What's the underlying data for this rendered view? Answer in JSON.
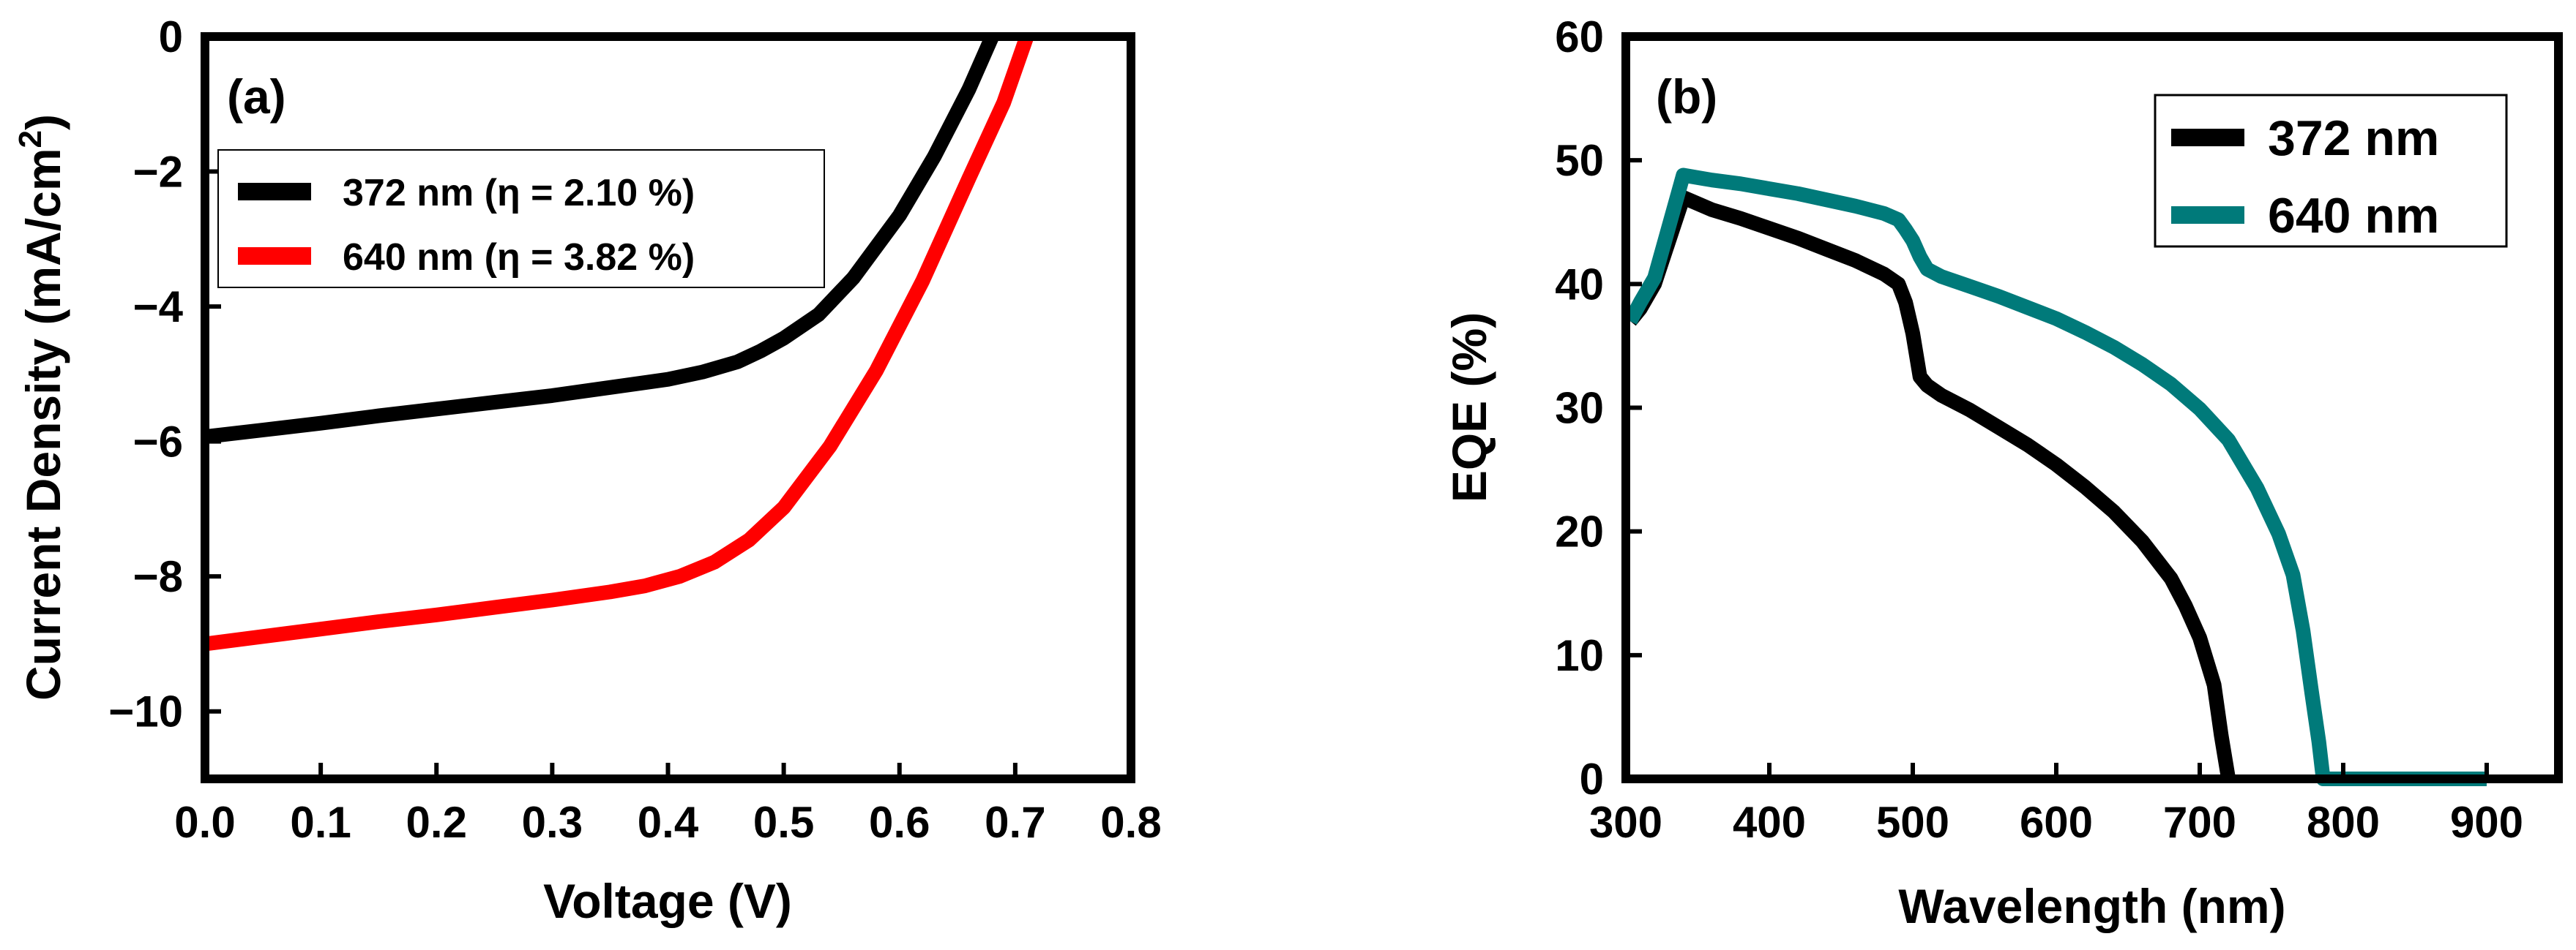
{
  "chart_data": [
    {
      "type": "line",
      "panel_label": "(a)",
      "xlabel": "Voltage (V)",
      "ylabel": "Current Density (mA/cm",
      "ylabel_sup": "2",
      "ylabel_close": ")",
      "xlim": [
        0,
        0.8
      ],
      "ylim": [
        -11,
        0
      ],
      "xticks": [
        0.0,
        0.1,
        0.2,
        0.3,
        0.4,
        0.5,
        0.6,
        0.7,
        0.8
      ],
      "xtick_labels": [
        "0.0",
        "0.1",
        "0.2",
        "0.3",
        "0.4",
        "0.5",
        "0.6",
        "0.7",
        "0.8"
      ],
      "yticks": [
        0,
        -2,
        -4,
        -6,
        -8,
        -10
      ],
      "ytick_labels": [
        "0",
        "−2",
        "−4",
        "−6",
        "−8",
        "−10"
      ],
      "legend_position": "top-left",
      "series": [
        {
          "name": "372 nm (η = 2.10 %)",
          "color": "#000000",
          "x": [
            0.0,
            0.05,
            0.1,
            0.15,
            0.2,
            0.25,
            0.3,
            0.35,
            0.4,
            0.43,
            0.46,
            0.48,
            0.5,
            0.53,
            0.56,
            0.6,
            0.63,
            0.66,
            0.68
          ],
          "y": [
            -5.93,
            -5.83,
            -5.73,
            -5.62,
            -5.52,
            -5.42,
            -5.32,
            -5.2,
            -5.08,
            -4.97,
            -4.82,
            -4.66,
            -4.47,
            -4.12,
            -3.58,
            -2.65,
            -1.78,
            -0.78,
            0.0
          ]
        },
        {
          "name": "640 nm (η = 3.82 %)",
          "color": "#ff0000",
          "x": [
            0.0,
            0.05,
            0.1,
            0.15,
            0.2,
            0.25,
            0.3,
            0.35,
            0.38,
            0.41,
            0.44,
            0.47,
            0.5,
            0.54,
            0.58,
            0.62,
            0.66,
            0.69,
            0.71
          ],
          "y": [
            -9.0,
            -8.89,
            -8.78,
            -8.67,
            -8.57,
            -8.46,
            -8.35,
            -8.23,
            -8.14,
            -8.0,
            -7.79,
            -7.46,
            -6.98,
            -6.07,
            -4.95,
            -3.62,
            -2.1,
            -0.98,
            0.0
          ]
        }
      ]
    },
    {
      "type": "line",
      "panel_label": "(b)",
      "xlabel": "Wavelength (nm)",
      "ylabel": "EQE (%)",
      "xlim": [
        300,
        950
      ],
      "ylim": [
        0,
        60
      ],
      "xticks": [
        300,
        400,
        500,
        600,
        700,
        800,
        900
      ],
      "xtick_labels": [
        "300",
        "400",
        "500",
        "600",
        "700",
        "800",
        "900"
      ],
      "yticks": [
        0,
        10,
        20,
        30,
        40,
        50,
        60
      ],
      "ytick_labels": [
        "0",
        "10",
        "20",
        "30",
        "40",
        "50",
        "60"
      ],
      "legend_position": "top-right",
      "series": [
        {
          "name": "372 nm",
          "color": "#000000",
          "x": [
            303,
            310,
            320,
            340,
            360,
            380,
            400,
            420,
            440,
            460,
            480,
            490,
            495,
            500,
            505,
            510,
            520,
            540,
            560,
            580,
            600,
            620,
            640,
            660,
            680,
            690,
            700,
            710,
            715,
            720
          ],
          "y": [
            37,
            38,
            40,
            47,
            46,
            45.3,
            44.5,
            43.7,
            42.8,
            41.9,
            40.8,
            40,
            38.5,
            36,
            32.5,
            31.8,
            31,
            29.8,
            28.4,
            27,
            25.4,
            23.6,
            21.6,
            19.2,
            16.2,
            14,
            11.4,
            7.6,
            3.5,
            0
          ]
        },
        {
          "name": "640 nm",
          "color": "#007a7a",
          "x": [
            303,
            310,
            320,
            340,
            360,
            380,
            400,
            420,
            440,
            460,
            480,
            490,
            495,
            500,
            505,
            510,
            520,
            540,
            560,
            580,
            600,
            620,
            640,
            660,
            680,
            700,
            720,
            740,
            755,
            765,
            772,
            778,
            783,
            786,
            800,
            850,
            900
          ],
          "y": [
            37,
            38.5,
            40.5,
            48.8,
            48.4,
            48.1,
            47.7,
            47.3,
            46.8,
            46.3,
            45.7,
            45.2,
            44.4,
            43.5,
            42.2,
            41.2,
            40.6,
            39.8,
            39,
            38.1,
            37.2,
            36.1,
            34.9,
            33.5,
            31.9,
            29.9,
            27.4,
            23.5,
            19.8,
            16.5,
            12,
            7,
            3,
            0,
            0,
            0,
            0
          ]
        }
      ]
    }
  ]
}
